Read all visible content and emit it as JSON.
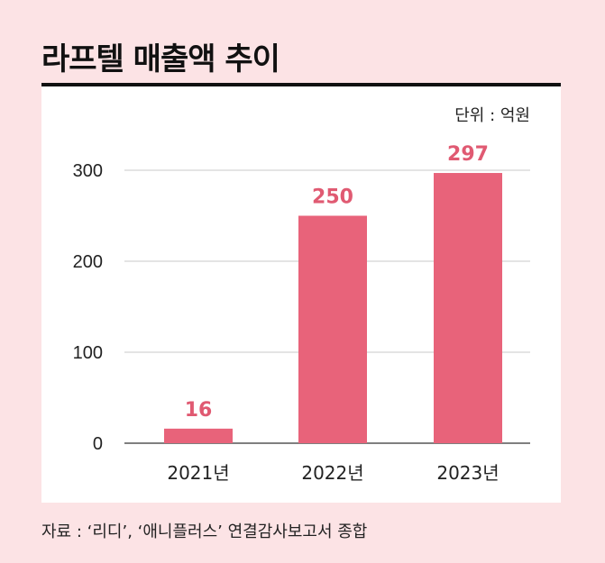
{
  "title": "라프텔 매출액 추이",
  "unit": "단위 : 억원",
  "source": "자료 : ‘리디’, ‘애니플러스’ 연결감사보고서 종합",
  "colors": {
    "background": "#fce3e5",
    "panel": "#ffffff",
    "bar": "#e8637a",
    "value_label": "#e05a72",
    "grid": "#c8c8c8",
    "text": "#222222"
  },
  "chart_data": {
    "type": "bar",
    "title": "라프텔 매출액 추이",
    "xlabel": "",
    "ylabel": "",
    "categories": [
      "2021년",
      "2022년",
      "2023년"
    ],
    "values": [
      16,
      250,
      297
    ],
    "ylim": [
      0,
      300
    ],
    "yticks": [
      0,
      100,
      200,
      300
    ],
    "grid": true
  }
}
